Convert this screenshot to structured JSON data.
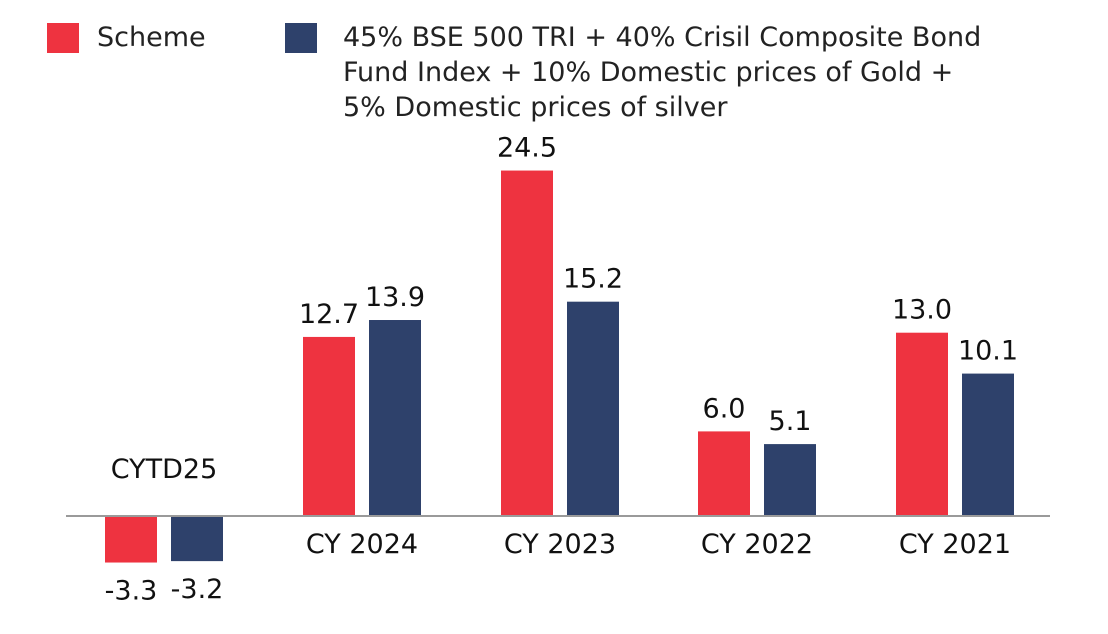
{
  "chart_data": {
    "type": "bar",
    "categories": [
      "CYTD25",
      "CY 2024",
      "CY 2023",
      "CY 2022",
      "CY 2021"
    ],
    "series": [
      {
        "name": "Scheme",
        "color": "#EE3340",
        "values": [
          -3.3,
          12.7,
          24.5,
          6.0,
          13.0
        ],
        "labels": [
          "-3.3",
          "12.7",
          "24.5",
          "6.0",
          "13.0"
        ]
      },
      {
        "name": "45% BSE 500 TRI + 40% Crisil Composite Bond Fund Index + 10% Domestic prices of Gold + 5% Domestic prices of silver",
        "color": "#2E416B",
        "values": [
          -3.2,
          13.9,
          15.2,
          5.1,
          10.1
        ],
        "labels": [
          "-3.2",
          "13.9",
          "15.2",
          "5.1",
          "10.1"
        ]
      }
    ],
    "legend": {
      "placement": "top",
      "series_1_lines": [
        "Scheme"
      ],
      "series_2_lines": [
        "45% BSE 500 TRI + 40% Crisil Composite Bond",
        "Fund Index + 10% Domestic prices of Gold +",
        "5% Domestic prices of silver"
      ]
    },
    "ylim": [
      -3.3,
      24.5
    ],
    "grid": false,
    "title": "",
    "xlabel": "",
    "ylabel": ""
  }
}
